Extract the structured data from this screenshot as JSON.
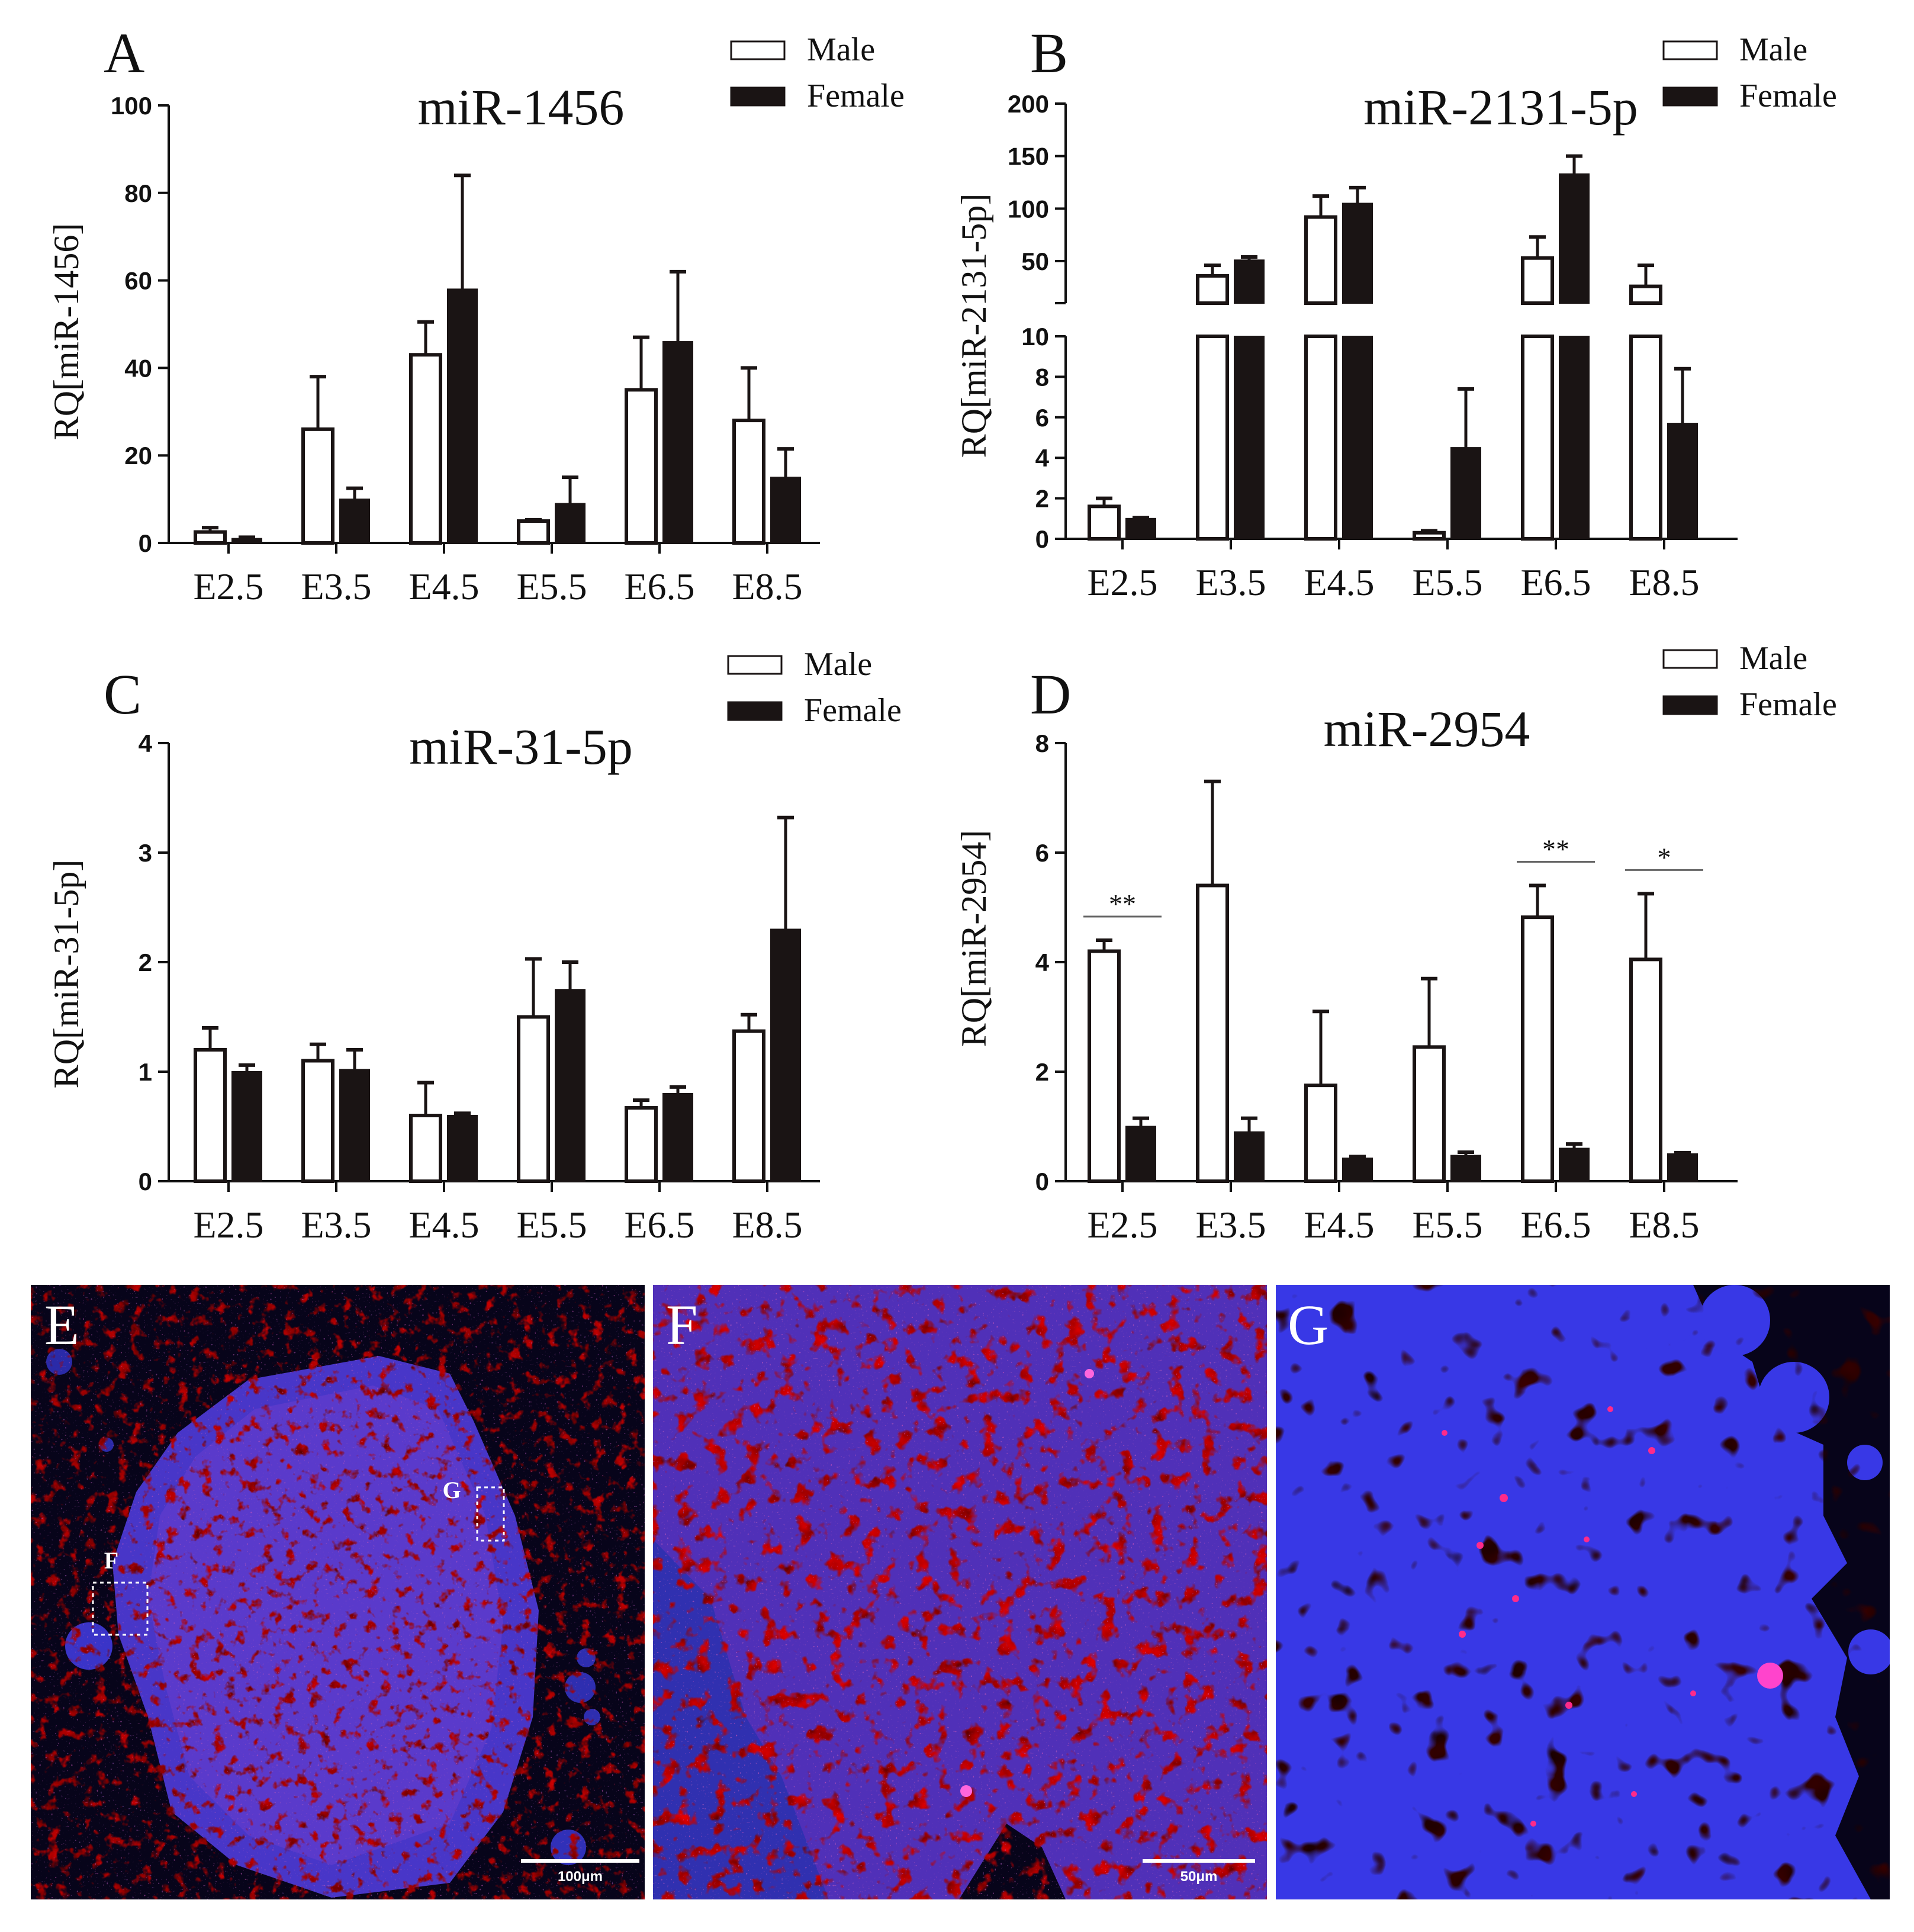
{
  "chart_data": [
    {
      "panel": "A",
      "type": "bar",
      "title": "miR-1456",
      "ylabel": "RQ[miR-1456]",
      "ylim": [
        0,
        100
      ],
      "yticks": [
        0,
        20,
        40,
        60,
        80,
        100
      ],
      "categories": [
        "E2.5",
        "E3.5",
        "E4.5",
        "E5.5",
        "E6.5",
        "E8.5"
      ],
      "legend": [
        "Male",
        "Female"
      ],
      "series": [
        {
          "name": "Male",
          "values": [
            2.5,
            26,
            43,
            5,
            35,
            28
          ],
          "errors": [
            1,
            12,
            7.5,
            0.3,
            12,
            12
          ]
        },
        {
          "name": "Female",
          "values": [
            1,
            10,
            58,
            9,
            46,
            15
          ],
          "errors": [
            0.3,
            2.5,
            26,
            6,
            16,
            6.5
          ]
        }
      ],
      "significance": []
    },
    {
      "panel": "B",
      "type": "bar",
      "title": "miR-2131-5p",
      "ylabel": "RQ[miR-2131-5p]",
      "axis_break": true,
      "lower_ylim": [
        0,
        10
      ],
      "lower_yticks": [
        0,
        2,
        4,
        6,
        8,
        10
      ],
      "upper_ylim": [
        10,
        200
      ],
      "upper_yticks": [
        50,
        100,
        150,
        200
      ],
      "categories": [
        "E2.5",
        "E3.5",
        "E4.5",
        "E5.5",
        "E6.5",
        "E8.5"
      ],
      "legend": [
        "Male",
        "Female"
      ],
      "series": [
        {
          "name": "Male",
          "values": [
            1.6,
            36,
            92,
            0.3,
            53,
            26
          ],
          "errors": [
            0.4,
            10,
            20,
            0.1,
            20,
            20
          ]
        },
        {
          "name": "Female",
          "values": [
            1,
            51,
            105,
            4.5,
            133,
            5.7
          ],
          "errors": [
            0.05,
            3,
            15,
            2.9,
            17,
            2.7
          ]
        }
      ],
      "significance": []
    },
    {
      "panel": "C",
      "type": "bar",
      "title": "miR-31-5p",
      "ylabel": "RQ[miR-31-5p]",
      "ylim": [
        0,
        4
      ],
      "yticks": [
        0,
        1,
        2,
        3,
        4
      ],
      "categories": [
        "E2.5",
        "E3.5",
        "E4.5",
        "E5.5",
        "E6.5",
        "E8.5"
      ],
      "legend": [
        "Male",
        "Female"
      ],
      "series": [
        {
          "name": "Male",
          "values": [
            1.2,
            1.1,
            0.6,
            1.5,
            0.67,
            1.37
          ],
          "errors": [
            0.2,
            0.15,
            0.3,
            0.53,
            0.07,
            0.15
          ]
        },
        {
          "name": "Female",
          "values": [
            1,
            1.02,
            0.6,
            1.75,
            0.8,
            2.3
          ],
          "errors": [
            0.06,
            0.18,
            0.02,
            0.25,
            0.06,
            1.02
          ]
        }
      ],
      "significance": []
    },
    {
      "panel": "D",
      "type": "bar",
      "title": "miR-2954",
      "ylabel": "RQ[miR-2954]",
      "ylim": [
        0,
        8
      ],
      "yticks": [
        0,
        2,
        4,
        6,
        8
      ],
      "categories": [
        "E2.5",
        "E3.5",
        "E4.5",
        "E5.5",
        "E6.5",
        "E8.5"
      ],
      "legend": [
        "Male",
        "Female"
      ],
      "series": [
        {
          "name": "Male",
          "values": [
            4.2,
            5.4,
            1.75,
            2.45,
            4.82,
            4.05
          ],
          "errors": [
            0.2,
            1.9,
            1.35,
            1.25,
            0.58,
            1.2
          ]
        },
        {
          "name": "Female",
          "values": [
            1,
            0.9,
            0.42,
            0.47,
            0.6,
            0.5
          ],
          "errors": [
            0.15,
            0.25,
            0.03,
            0.06,
            0.08,
            0.02
          ]
        }
      ],
      "significance": [
        {
          "category": "E2.5",
          "label": "**"
        },
        {
          "category": "E6.5",
          "label": "**"
        },
        {
          "category": "E8.5",
          "label": "*"
        }
      ]
    }
  ],
  "micrographs": [
    {
      "letter": "E",
      "scale_bar": "100μm",
      "roi_labels": [
        "F",
        "G"
      ]
    },
    {
      "letter": "F",
      "scale_bar": "50μm"
    },
    {
      "letter": "G"
    }
  ],
  "colors": {
    "bar_edge": "#1a1414",
    "female_fill": "#1a1414",
    "male_fill": "#ffffff",
    "axis": "#111111",
    "micro_background": "#07041a",
    "dapi_blue": "#3a3ae0",
    "signal_magenta": "#ff2a8a"
  }
}
